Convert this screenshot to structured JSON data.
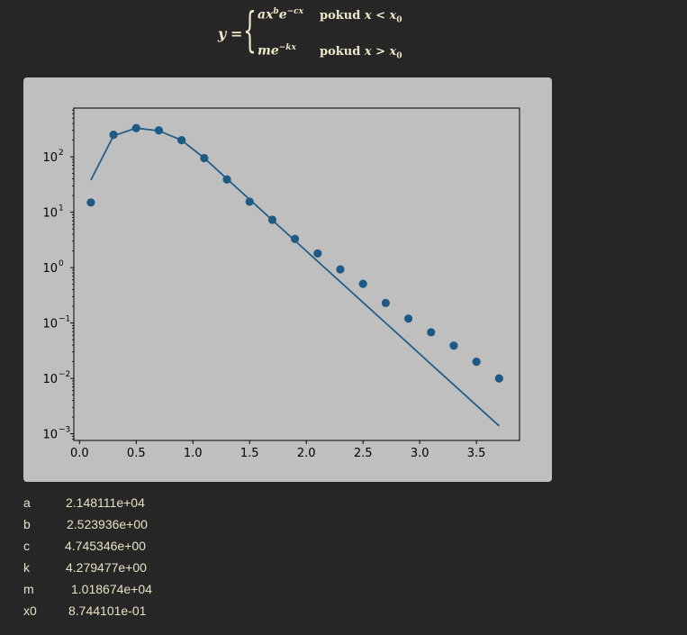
{
  "formula": {
    "lhs": "y",
    "equals": "=",
    "case1_expr": "ax",
    "case1_sup": "b",
    "case1_e": "e",
    "case1_esup": "−cx",
    "case1_condition_word": "pokud",
    "case1_condition": "x < x",
    "case1_condition_sub": "0",
    "case2_expr": "me",
    "case2_esup": "−kx",
    "case2_condition_word": "pokud",
    "case2_condition": "x > x",
    "case2_condition_sub": "0"
  },
  "chart_data": {
    "type": "scatter",
    "title": "",
    "xlabel": "",
    "ylabel": "",
    "xscale": "linear",
    "yscale": "log",
    "xlim": [
      -0.05,
      3.88
    ],
    "ylim_log10": [
      -3.12,
      2.88
    ],
    "xticks": [
      0.0,
      0.5,
      1.0,
      1.5,
      2.0,
      2.5,
      3.0,
      3.5
    ],
    "xtick_labels": [
      "0.0",
      "0.5",
      "1.0",
      "1.5",
      "2.0",
      "2.5",
      "3.0",
      "3.5"
    ],
    "yticks_exp": [
      -3,
      -2,
      -1,
      0,
      1,
      2
    ],
    "ytick_label_base": "10",
    "marker_color": "#1f5a85",
    "line_color": "#245f8a",
    "series": [
      {
        "kind": "points",
        "x": [
          0.1,
          0.3,
          0.5,
          0.7,
          0.9,
          1.1,
          1.3,
          1.5,
          1.7,
          1.9,
          2.1,
          2.3,
          2.5,
          2.7,
          2.9,
          3.1,
          3.3,
          3.5,
          3.7
        ],
        "y": [
          15,
          250,
          330,
          300,
          200,
          95,
          39,
          15.5,
          7.3,
          3.3,
          1.8,
          0.93,
          0.51,
          0.23,
          0.12,
          0.068,
          0.039,
          0.02,
          0.01
        ]
      },
      {
        "kind": "line",
        "x": [
          0.1,
          0.3,
          0.5,
          0.7,
          0.9,
          1.1,
          1.3,
          1.5,
          1.7,
          1.9,
          2.1,
          2.3,
          2.5,
          2.7,
          2.9,
          3.1,
          3.3,
          3.5,
          3.7
        ],
        "y": [
          38,
          240,
          330,
          295,
          200,
          95,
          40,
          17,
          7.2,
          3.06,
          1.3,
          0.553,
          0.235,
          0.1,
          0.0425,
          0.018,
          0.00767,
          0.00326,
          0.00139
        ]
      }
    ]
  },
  "params": [
    {
      "name": "a",
      "value": "2.148111e+04"
    },
    {
      "name": "b",
      "value": "2.523936e+00"
    },
    {
      "name": "c",
      "value": "4.745346e+00"
    },
    {
      "name": "k",
      "value": "4.279477e+00"
    },
    {
      "name": "m",
      "value": "1.018674e+04"
    },
    {
      "name": "x0",
      "value": "8.744101e-01"
    }
  ]
}
